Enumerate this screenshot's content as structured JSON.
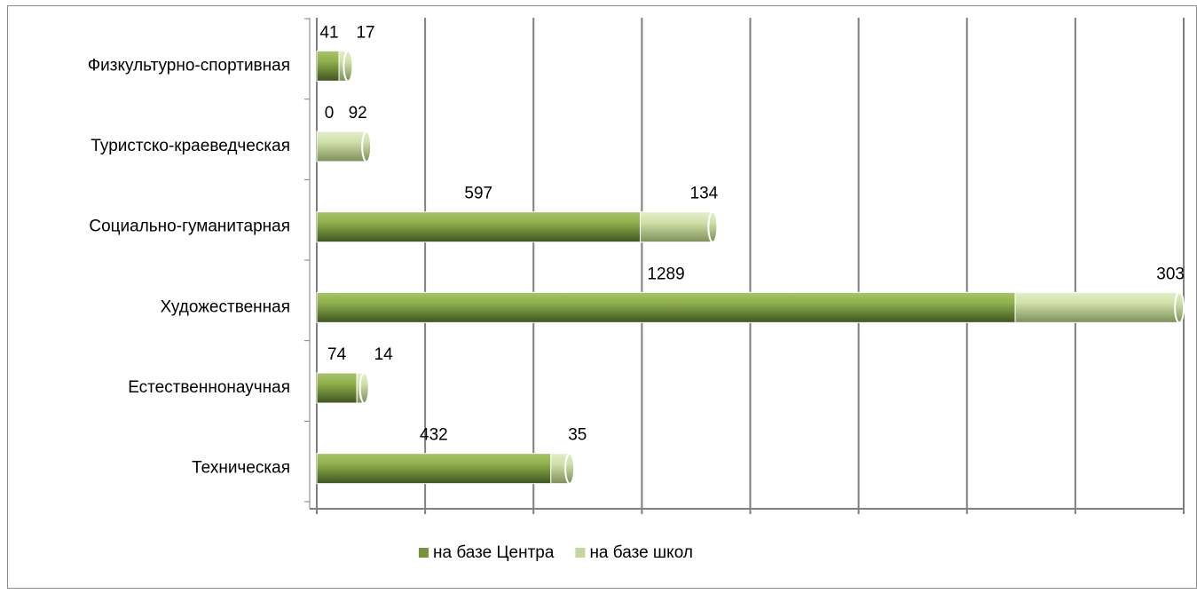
{
  "chart_data": {
    "type": "stacked_barh",
    "categories": [
      "Физкультурно-спортивная",
      "Туристско-краеведческая",
      "Социально-гуманитарная",
      "Художественная",
      "Естественнонаучная",
      "Техническая"
    ],
    "series": [
      {
        "name": "на базе Центра",
        "color": "#77933c",
        "values": [
          41,
          0,
          597,
          1289,
          74,
          432
        ]
      },
      {
        "name": "на базе школ",
        "color": "#c3d69b",
        "values": [
          17,
          92,
          134,
          303,
          14,
          35
        ]
      }
    ],
    "xlim": [
      0,
      1600
    ],
    "xticks": [
      0,
      200,
      400,
      600,
      800,
      1000,
      1200,
      1400,
      1600
    ],
    "grid": true,
    "legend": "bottom"
  }
}
